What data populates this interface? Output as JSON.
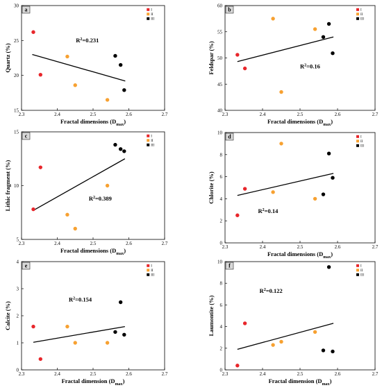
{
  "colors": {
    "I": "#e8262b",
    "II": "#f7a131",
    "III": "#000000",
    "axis": "#000000",
    "fit": "#000000"
  },
  "chart_data": [
    {
      "panel": "a",
      "type": "scatter",
      "xlabel": "Fractal dimensions (D",
      "xlabel_sub": "max",
      "xlabel_end": ")",
      "ylabel": "Quartz (%)",
      "xlim": [
        2.3,
        2.7
      ],
      "ylim": [
        15,
        30
      ],
      "xticks": [
        "2.3",
        "2.4",
        "2.5",
        "2.6",
        "2.7"
      ],
      "yticks": [
        "15",
        "20",
        "25",
        "30"
      ],
      "legend": [
        "I",
        "II",
        "III"
      ],
      "r2_label": "R",
      "r2_sup": "2",
      "r2_value": "=0.231",
      "fit": {
        "x": [
          2.33,
          2.59
        ],
        "y": [
          23.0,
          19.2
        ]
      },
      "series": [
        {
          "name": "I",
          "color_key": "I",
          "points": [
            [
              2.333,
              26.2
            ],
            [
              2.353,
              20.1
            ]
          ]
        },
        {
          "name": "II",
          "color_key": "II",
          "points": [
            [
              2.428,
              22.7
            ],
            [
              2.45,
              18.6
            ],
            [
              2.54,
              16.5
            ]
          ]
        },
        {
          "name": "III",
          "color_key": "III",
          "points": [
            [
              2.562,
              22.8
            ],
            [
              2.577,
              21.5
            ],
            [
              2.587,
              17.9
            ]
          ]
        }
      ]
    },
    {
      "panel": "b",
      "type": "scatter",
      "xlabel": "Fractal dimensions (D",
      "xlabel_sub": "max",
      "xlabel_end": ")",
      "ylabel": "Feldspar (%)",
      "xlim": [
        2.3,
        2.7
      ],
      "ylim": [
        40,
        60
      ],
      "xticks": [
        "2.3",
        "2.4",
        "2.5",
        "2.6",
        "2.7"
      ],
      "yticks": [
        "40",
        "45",
        "50",
        "55",
        "60"
      ],
      "legend": [
        "I",
        "II",
        "III"
      ],
      "r2_label": "R",
      "r2_sup": "2",
      "r2_value": "=0.16",
      "fit": {
        "x": [
          2.333,
          2.589
        ],
        "y": [
          49.3,
          54.0
        ]
      },
      "series": [
        {
          "name": "I",
          "color_key": "I",
          "points": [
            [
              2.333,
              50.6
            ],
            [
              2.353,
              48.0
            ]
          ]
        },
        {
          "name": "II",
          "color_key": "II",
          "points": [
            [
              2.428,
              57.5
            ],
            [
              2.45,
              43.5
            ],
            [
              2.54,
              55.5
            ]
          ]
        },
        {
          "name": "III",
          "color_key": "III",
          "points": [
            [
              2.562,
              54.0
            ],
            [
              2.577,
              56.5
            ],
            [
              2.587,
              50.9
            ]
          ]
        }
      ]
    },
    {
      "panel": "c",
      "type": "scatter",
      "xlabel": "Fractal dimensions (D",
      "xlabel_sub": "max",
      "xlabel_end": ")",
      "ylabel": "Lithic fragment (%)",
      "xlim": [
        2.3,
        2.7
      ],
      "ylim": [
        5,
        15
      ],
      "xticks": [
        "2.3",
        "2.4",
        "2.5",
        "2.6",
        "2.7"
      ],
      "yticks": [
        "5",
        "10",
        "15"
      ],
      "legend": [
        "I",
        "II",
        "III"
      ],
      "r2_label": "R",
      "r2_sup": "2",
      "r2_value": "=0.389",
      "fit": {
        "x": [
          2.333,
          2.589
        ],
        "y": [
          7.7,
          12.5
        ]
      },
      "series": [
        {
          "name": "I",
          "color_key": "I",
          "points": [
            [
              2.333,
              7.8
            ],
            [
              2.353,
              11.7
            ]
          ]
        },
        {
          "name": "II",
          "color_key": "II",
          "points": [
            [
              2.428,
              7.3
            ],
            [
              2.45,
              6.0
            ],
            [
              2.54,
              10.0
            ]
          ]
        },
        {
          "name": "III",
          "color_key": "III",
          "points": [
            [
              2.562,
              13.8
            ],
            [
              2.577,
              13.4
            ],
            [
              2.587,
              13.2
            ]
          ]
        }
      ]
    },
    {
      "panel": "d",
      "type": "scatter",
      "xlabel": "Fractal dimensions (D",
      "xlabel_sub": "max",
      "xlabel_end": ")",
      "ylabel": "Chlorite (%)",
      "xlim": [
        2.3,
        2.7
      ],
      "ylim": [
        0,
        10
      ],
      "xticks": [
        "2.3",
        "2.4",
        "2.5",
        "2.6",
        "2.7"
      ],
      "yticks": [
        "0",
        "2",
        "4",
        "6",
        "8",
        "10"
      ],
      "legend": [
        "I",
        "II",
        "III"
      ],
      "r2_label": "R",
      "r2_sup": "2",
      "r2_value": "=0.14",
      "fit": {
        "x": [
          2.333,
          2.589
        ],
        "y": [
          4.3,
          6.3
        ]
      },
      "series": [
        {
          "name": "I",
          "color_key": "I",
          "points": [
            [
              2.333,
              2.5
            ],
            [
              2.353,
              4.9
            ]
          ]
        },
        {
          "name": "II",
          "color_key": "II",
          "points": [
            [
              2.428,
              4.6
            ],
            [
              2.45,
              9.0
            ],
            [
              2.54,
              4.0
            ]
          ]
        },
        {
          "name": "III",
          "color_key": "III",
          "points": [
            [
              2.562,
              4.4
            ],
            [
              2.577,
              8.1
            ],
            [
              2.587,
              5.9
            ]
          ]
        }
      ]
    },
    {
      "panel": "e",
      "type": "scatter",
      "xlabel": "Fractal dimension (D",
      "xlabel_sub": "max",
      "xlabel_end": ")",
      "ylabel": "Calcite (%)",
      "xlim": [
        2.3,
        2.7
      ],
      "ylim": [
        0,
        4
      ],
      "xticks": [
        "2.3",
        "2.4",
        "2.5",
        "2.6",
        "2.7"
      ],
      "yticks": [
        "0",
        "1",
        "2",
        "3",
        "4"
      ],
      "legend": [
        "I",
        "II",
        "III"
      ],
      "r2_label": "R",
      "r2_sup": "2",
      "r2_value": "=0.154",
      "fit": {
        "x": [
          2.333,
          2.589
        ],
        "y": [
          1.02,
          1.6
        ]
      },
      "series": [
        {
          "name": "I",
          "color_key": "I",
          "points": [
            [
              2.333,
              1.6
            ],
            [
              2.353,
              0.4
            ]
          ]
        },
        {
          "name": "II",
          "color_key": "II",
          "points": [
            [
              2.428,
              1.6
            ],
            [
              2.45,
              1.0
            ],
            [
              2.54,
              1.0
            ]
          ]
        },
        {
          "name": "III",
          "color_key": "III",
          "points": [
            [
              2.562,
              1.4
            ],
            [
              2.577,
              2.5
            ],
            [
              2.587,
              1.3
            ]
          ]
        }
      ]
    },
    {
      "panel": "f",
      "type": "scatter",
      "xlabel": "Fractal dimension (D",
      "xlabel_sub": "max",
      "xlabel_end": ")",
      "ylabel": "Laumontite (%)",
      "xlim": [
        2.3,
        2.7
      ],
      "ylim": [
        0,
        10
      ],
      "xticks": [
        "2.3",
        "2.4",
        "2.5",
        "2.6",
        "2.7"
      ],
      "yticks": [
        "0",
        "2",
        "4",
        "6",
        "8",
        "10"
      ],
      "legend": [
        "I",
        "II",
        "III"
      ],
      "r2_label": "R",
      "r2_sup": "2",
      "r2_value": "=0.122",
      "fit": {
        "x": [
          2.333,
          2.589
        ],
        "y": [
          1.9,
          4.3
        ]
      },
      "series": [
        {
          "name": "I",
          "color_key": "I",
          "points": [
            [
              2.333,
              0.4
            ],
            [
              2.353,
              4.3
            ]
          ]
        },
        {
          "name": "II",
          "color_key": "II",
          "points": [
            [
              2.428,
              2.3
            ],
            [
              2.45,
              2.6
            ],
            [
              2.54,
              3.5
            ]
          ]
        },
        {
          "name": "III",
          "color_key": "III",
          "points": [
            [
              2.562,
              1.8
            ],
            [
              2.577,
              9.5
            ],
            [
              2.587,
              1.7
            ]
          ]
        }
      ]
    }
  ]
}
